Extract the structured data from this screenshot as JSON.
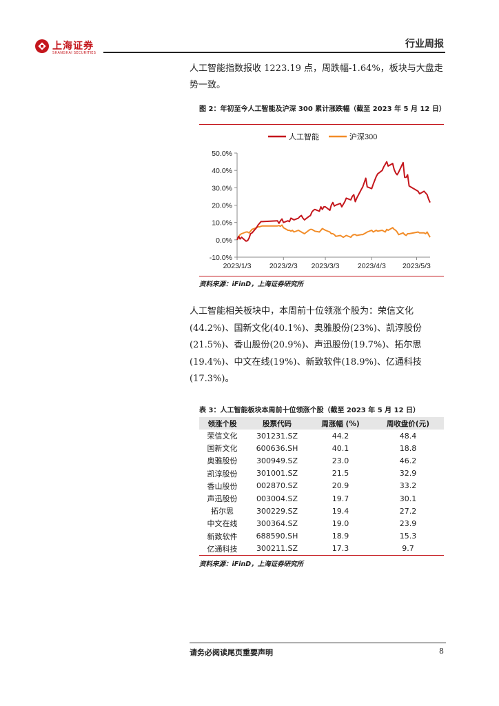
{
  "header": {
    "logo_cn": "上海证券",
    "logo_en": "SHANGHAI SECURITIES",
    "report_type": "行业周报"
  },
  "para1": "人工智能指数报收 1223.19 点，周跌幅-1.64%，板块与大盘走势一致。",
  "figure2": {
    "title": "图 2：年初至今人工智能及沪深 300 累计涨跌幅（截至 2023 年 5 月 12 日）",
    "source": "资料来源：iFinD，上海证券研究所"
  },
  "chart_data": {
    "type": "line",
    "title": "",
    "xlabel": "",
    "ylabel": "",
    "y_format": "percent",
    "ylim": [
      -10,
      50
    ],
    "yticks": [
      -10,
      0,
      10,
      20,
      30,
      40,
      50
    ],
    "ytick_labels": [
      "-10.0%",
      "0.0%",
      "10.0%",
      "20.0%",
      "30.0%",
      "40.0%",
      "50.0%"
    ],
    "xlim": [
      "2023-01-03",
      "2023-05-12"
    ],
    "xticks": [
      "2023-01-03",
      "2023-02-03",
      "2023-03-03",
      "2023-04-03",
      "2023-05-03"
    ],
    "xtick_labels": [
      "2023/1/3",
      "2023/2/3",
      "2023/3/3",
      "2023/4/3",
      "2023/5/3"
    ],
    "legend_position": "top",
    "colors": {
      "ai": "#c4161c",
      "hs300": "#f28c28"
    },
    "series": [
      {
        "name": "人工智能",
        "x": [
          "2023-01-03",
          "2023-01-04",
          "2023-01-05",
          "2023-01-06",
          "2023-01-09",
          "2023-01-10",
          "2023-01-11",
          "2023-01-12",
          "2023-01-13",
          "2023-01-16",
          "2023-01-17",
          "2023-01-18",
          "2023-01-19",
          "2023-01-20",
          "2023-01-30",
          "2023-01-31",
          "2023-02-01",
          "2023-02-02",
          "2023-02-03",
          "2023-02-06",
          "2023-02-07",
          "2023-02-08",
          "2023-02-09",
          "2023-02-10",
          "2023-02-13",
          "2023-02-14",
          "2023-02-15",
          "2023-02-16",
          "2023-02-17",
          "2023-02-20",
          "2023-02-21",
          "2023-02-22",
          "2023-02-23",
          "2023-02-24",
          "2023-02-27",
          "2023-02-28",
          "2023-03-01",
          "2023-03-02",
          "2023-03-03",
          "2023-03-06",
          "2023-03-07",
          "2023-03-08",
          "2023-03-09",
          "2023-03-10",
          "2023-03-13",
          "2023-03-14",
          "2023-03-15",
          "2023-03-16",
          "2023-03-17",
          "2023-03-20",
          "2023-03-21",
          "2023-03-22",
          "2023-03-23",
          "2023-03-24",
          "2023-03-27",
          "2023-03-28",
          "2023-03-29",
          "2023-03-30",
          "2023-03-31",
          "2023-04-03",
          "2023-04-04",
          "2023-04-06",
          "2023-04-07",
          "2023-04-10",
          "2023-04-11",
          "2023-04-12",
          "2023-04-13",
          "2023-04-14",
          "2023-04-17",
          "2023-04-18",
          "2023-04-19",
          "2023-04-20",
          "2023-04-21",
          "2023-04-24",
          "2023-04-25",
          "2023-04-26",
          "2023-04-27",
          "2023-04-28",
          "2023-05-04",
          "2023-05-05",
          "2023-05-08",
          "2023-05-09",
          "2023-05-10",
          "2023-05-11",
          "2023-05-12"
        ],
        "values": [
          0.0,
          2.0,
          0.5,
          1.5,
          -0.8,
          -0.5,
          1.0,
          3.5,
          4.0,
          7.0,
          8.5,
          9.5,
          10.5,
          10.5,
          11.0,
          9.5,
          11.0,
          12.0,
          10.0,
          11.0,
          10.5,
          12.5,
          12.0,
          11.5,
          12.5,
          13.5,
          14.0,
          12.5,
          11.5,
          13.5,
          14.0,
          16.0,
          17.0,
          17.5,
          16.5,
          19.0,
          17.5,
          19.0,
          19.0,
          17.0,
          20.0,
          21.5,
          19.5,
          20.0,
          21.0,
          19.0,
          20.5,
          22.0,
          24.0,
          23.0,
          25.0,
          26.0,
          22.0,
          24.0,
          29.0,
          30.5,
          33.0,
          35.5,
          30.5,
          29.5,
          32.0,
          36.5,
          38.0,
          40.0,
          42.0,
          43.5,
          45.0,
          42.5,
          44.0,
          40.5,
          38.5,
          37.5,
          39.0,
          44.5,
          36.0,
          36.0,
          37.5,
          31.0,
          28.0,
          26.5,
          28.0,
          27.0,
          26.0,
          23.5,
          21.5
        ]
      },
      {
        "name": "沪深300",
        "x": [
          "2023-01-03",
          "2023-01-04",
          "2023-01-05",
          "2023-01-06",
          "2023-01-09",
          "2023-01-10",
          "2023-01-11",
          "2023-01-12",
          "2023-01-13",
          "2023-01-16",
          "2023-01-17",
          "2023-01-18",
          "2023-01-19",
          "2023-01-20",
          "2023-01-30",
          "2023-01-31",
          "2023-02-01",
          "2023-02-02",
          "2023-02-03",
          "2023-02-06",
          "2023-02-07",
          "2023-02-08",
          "2023-02-09",
          "2023-02-10",
          "2023-02-13",
          "2023-02-14",
          "2023-02-15",
          "2023-02-16",
          "2023-02-17",
          "2023-02-20",
          "2023-02-21",
          "2023-02-22",
          "2023-02-23",
          "2023-02-24",
          "2023-02-27",
          "2023-02-28",
          "2023-03-01",
          "2023-03-02",
          "2023-03-03",
          "2023-03-06",
          "2023-03-07",
          "2023-03-08",
          "2023-03-09",
          "2023-03-10",
          "2023-03-13",
          "2023-03-14",
          "2023-03-15",
          "2023-03-16",
          "2023-03-17",
          "2023-03-20",
          "2023-03-21",
          "2023-03-22",
          "2023-03-23",
          "2023-03-24",
          "2023-03-27",
          "2023-03-28",
          "2023-03-29",
          "2023-03-30",
          "2023-03-31",
          "2023-04-03",
          "2023-04-04",
          "2023-04-06",
          "2023-04-07",
          "2023-04-10",
          "2023-04-11",
          "2023-04-12",
          "2023-04-13",
          "2023-04-14",
          "2023-04-17",
          "2023-04-18",
          "2023-04-19",
          "2023-04-20",
          "2023-04-21",
          "2023-04-24",
          "2023-04-25",
          "2023-04-26",
          "2023-04-27",
          "2023-04-28",
          "2023-05-04",
          "2023-05-05",
          "2023-05-08",
          "2023-05-09",
          "2023-05-10",
          "2023-05-11",
          "2023-05-12"
        ],
        "values": [
          0.0,
          1.5,
          3.0,
          3.5,
          4.5,
          4.5,
          4.0,
          5.0,
          6.0,
          7.0,
          7.5,
          7.5,
          7.8,
          8.0,
          8.0,
          8.2,
          7.8,
          8.5,
          7.0,
          5.5,
          5.5,
          5.0,
          5.5,
          4.5,
          5.5,
          5.0,
          4.5,
          4.0,
          3.5,
          5.5,
          6.0,
          6.0,
          5.5,
          5.0,
          4.5,
          5.5,
          6.5,
          6.0,
          5.5,
          4.5,
          3.5,
          3.5,
          3.0,
          2.0,
          2.5,
          2.0,
          1.5,
          2.0,
          2.5,
          1.5,
          2.5,
          3.0,
          3.0,
          2.5,
          3.0,
          3.0,
          3.5,
          4.0,
          4.5,
          5.5,
          4.5,
          5.5,
          5.0,
          5.5,
          5.0,
          4.5,
          6.0,
          5.5,
          7.0,
          6.0,
          5.5,
          4.5,
          3.0,
          4.0,
          3.0,
          2.5,
          3.5,
          3.5,
          4.5,
          4.0,
          4.0,
          3.5,
          4.5,
          3.0,
          1.5
        ]
      }
    ]
  },
  "para2": "人工智能相关板块中，本周前十位领涨个股为：荣信文化(44.2%)、国新文化(40.1%)、奥雅股份(23%)、凯淳股份(21.5%)、香山股份(20.9%)、声迅股份(19.7%)、拓尔思(19.4%)、中文在线(19%)、新致软件(18.9%)、亿通科技(17.3%)。",
  "table3": {
    "title": "表 3：人工智能板块本周前十位领涨个股（截至 2023 年 5 月 12 日）",
    "headers": [
      "领涨个股",
      "股票代码",
      "周涨幅 (%)",
      "周收盘价(元)"
    ],
    "rows": [
      {
        "name": "荣信文化",
        "code": "301231.SZ",
        "change": "44.2",
        "close": "48.4"
      },
      {
        "name": "国新文化",
        "code": "600636.SH",
        "change": "40.1",
        "close": "18.8"
      },
      {
        "name": "奥雅股份",
        "code": "300949.SZ",
        "change": "23.0",
        "close": "46.2"
      },
      {
        "name": "凯淳股份",
        "code": "301001.SZ",
        "change": "21.5",
        "close": "32.9"
      },
      {
        "name": "香山股份",
        "code": "002870.SZ",
        "change": "20.9",
        "close": "33.2"
      },
      {
        "name": "声迅股份",
        "code": "003004.SZ",
        "change": "19.7",
        "close": "30.1"
      },
      {
        "name": "拓尔思",
        "code": "300229.SZ",
        "change": "19.4",
        "close": "27.2"
      },
      {
        "name": "中文在线",
        "code": "300364.SZ",
        "change": "19.0",
        "close": "23.9"
      },
      {
        "name": "新致软件",
        "code": "688590.SH",
        "change": "18.9",
        "close": "15.3"
      },
      {
        "name": "亿通科技",
        "code": "300211.SZ",
        "change": "17.3",
        "close": "9.7"
      }
    ],
    "source": "资料来源：iFinD，上海证券研究所"
  },
  "footer": {
    "note": "请务必阅读尾页重要声明",
    "page": "8"
  }
}
